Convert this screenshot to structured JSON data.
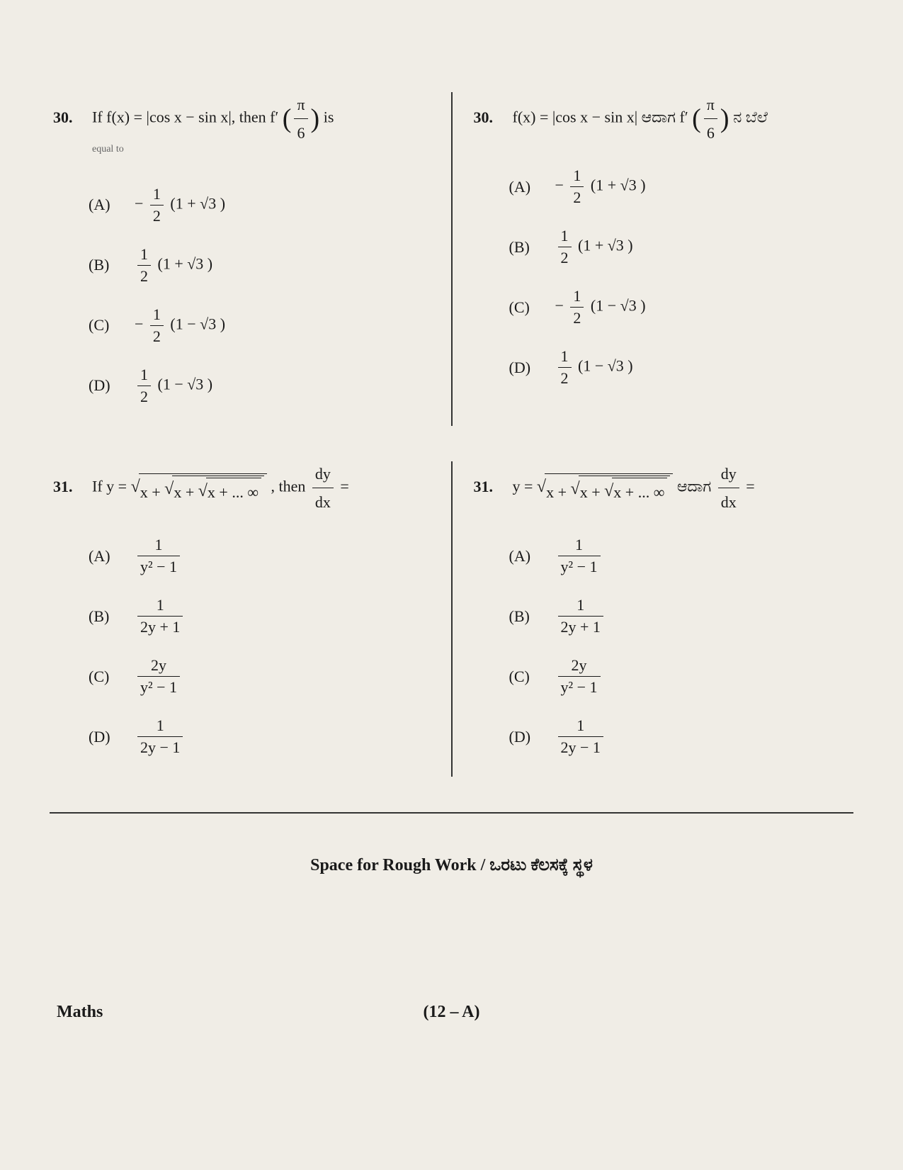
{
  "questions": [
    {
      "number": "30.",
      "left": {
        "prompt_pre": "If  f(x) = |cos x − sin x|,  then  f′",
        "prompt_frac_num": "π",
        "prompt_frac_den": "6",
        "prompt_post": "  is",
        "subtext": "equal to",
        "options": [
          {
            "label": "(A)",
            "pre": "−",
            "frac_num": "1",
            "frac_den": "2",
            "post": " (1 + √3 )"
          },
          {
            "label": "(B)",
            "pre": "",
            "frac_num": "1",
            "frac_den": "2",
            "post": " (1 + √3 )"
          },
          {
            "label": "(C)",
            "pre": "−",
            "frac_num": "1",
            "frac_den": "2",
            "post": " (1 − √3 )"
          },
          {
            "label": "(D)",
            "pre": "",
            "frac_num": "1",
            "frac_den": "2",
            "post": " (1 − √3 )"
          }
        ]
      },
      "right": {
        "prompt_pre": "f(x) = |cos x − sin x|  ಆದಾಗ f′",
        "prompt_frac_num": "π",
        "prompt_frac_den": "6",
        "prompt_post": " ನ ಬೆಲೆ",
        "options": [
          {
            "label": "(A)",
            "pre": "−",
            "frac_num": "1",
            "frac_den": "2",
            "post": " (1 + √3 )"
          },
          {
            "label": "(B)",
            "pre": "",
            "frac_num": "1",
            "frac_den": "2",
            "post": " (1 + √3 )"
          },
          {
            "label": "(C)",
            "pre": "−",
            "frac_num": "1",
            "frac_den": "2",
            "post": " (1 − √3 )"
          },
          {
            "label": "(D)",
            "pre": "",
            "frac_num": "1",
            "frac_den": "2",
            "post": " (1 − √3 )"
          }
        ]
      }
    },
    {
      "number": "31.",
      "left": {
        "prompt_pre": "If  y = ",
        "prompt_sqrt": "x + √(x + √(x + ... ∞))",
        "prompt_mid": " ,  then  ",
        "dy_num": "dy",
        "dy_den": "dx",
        "prompt_post": " =",
        "options": [
          {
            "label": "(A)",
            "frac_num": "1",
            "frac_den": "y² − 1"
          },
          {
            "label": "(B)",
            "frac_num": "1",
            "frac_den": "2y + 1"
          },
          {
            "label": "(C)",
            "frac_num": "2y",
            "frac_den": "y² − 1"
          },
          {
            "label": "(D)",
            "frac_num": "1",
            "frac_den": "2y − 1"
          }
        ]
      },
      "right": {
        "prompt_pre": "y = ",
        "prompt_sqrt": "x + √(x + √(x + ... ∞))",
        "prompt_mid": "  ಆದಾಗ ",
        "dy_num": "dy",
        "dy_den": "dx",
        "prompt_post": " =",
        "options": [
          {
            "label": "(A)",
            "frac_num": "1",
            "frac_den": "y² − 1"
          },
          {
            "label": "(B)",
            "frac_num": "1",
            "frac_den": "2y + 1"
          },
          {
            "label": "(C)",
            "frac_num": "2y",
            "frac_den": "y² − 1"
          },
          {
            "label": "(D)",
            "frac_num": "1",
            "frac_den": "2y − 1"
          }
        ]
      }
    }
  ],
  "space_rough": "Space for Rough Work / ಒರಟು ಕೆಲಸಕ್ಕೆ ಸ್ಥಳ",
  "footer": {
    "subject": "Maths",
    "page": "(12 – A)"
  }
}
